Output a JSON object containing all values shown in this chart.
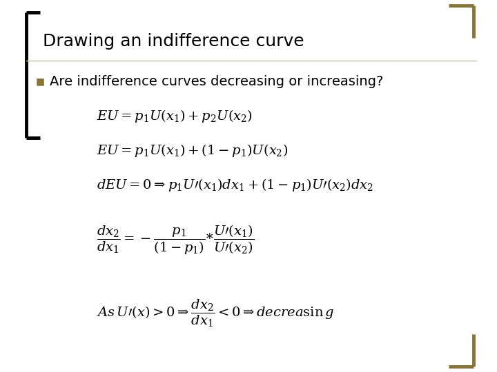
{
  "title": "Drawing an indifference curve",
  "title_fontsize": 18,
  "title_color": "#000000",
  "background_color": "#ffffff",
  "bullet_text": "Are indifference curves decreasing or increasing?",
  "bullet_fontsize": 14,
  "bullet_color": "#000000",
  "bullet_marker_color": "#8B7536",
  "left_bar_color": "#000000",
  "bracket_color": "#8B7536",
  "divider_color": "#c8c0a0",
  "eq_color": "#000000",
  "eq_fontsize": 14
}
